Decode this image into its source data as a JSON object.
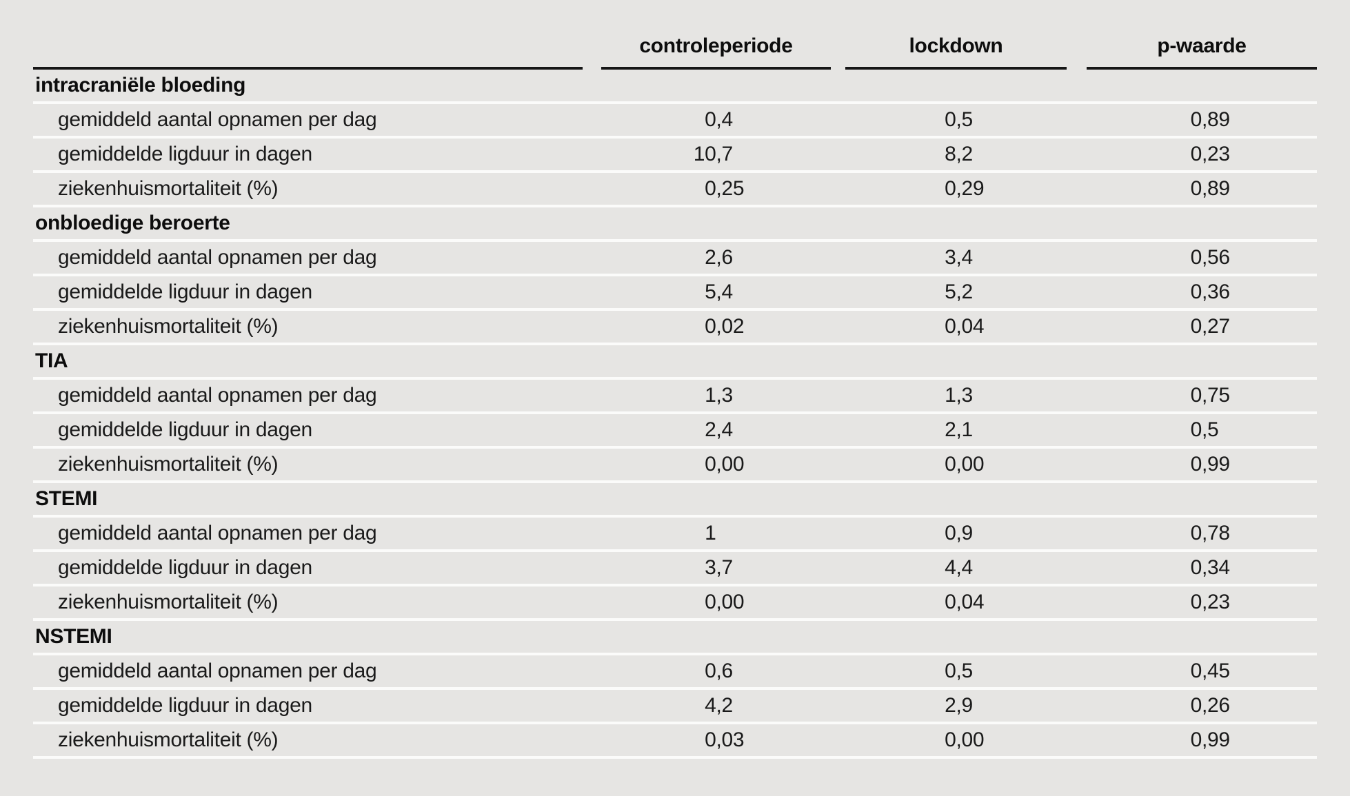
{
  "colors": {
    "background": "#e6e5e3",
    "row_separator": "#fbfbfa",
    "header_rule": "#161616",
    "text": "#1a1a1a"
  },
  "table": {
    "columns": [
      {
        "label": "controleperiode"
      },
      {
        "label": "lockdown"
      },
      {
        "label": "p-waarde"
      }
    ],
    "groups": [
      {
        "name": "intracraniële bloeding",
        "rows": [
          {
            "label": "gemiddeld aantal opnamen per dag",
            "values": [
              "0,4",
              "0,5",
              "0,89"
            ]
          },
          {
            "label": "gemiddelde ligduur in dagen",
            "values": [
              "10,7",
              "8,2",
              "0,23"
            ]
          },
          {
            "label": "ziekenhuismortaliteit (%)",
            "values": [
              "0,25",
              "0,29",
              "0,89"
            ]
          }
        ]
      },
      {
        "name": "onbloedige beroerte",
        "rows": [
          {
            "label": "gemiddeld aantal opnamen per dag",
            "values": [
              "2,6",
              "3,4",
              "0,56"
            ]
          },
          {
            "label": "gemiddelde ligduur in dagen",
            "values": [
              "5,4",
              "5,2",
              "0,36"
            ]
          },
          {
            "label": "ziekenhuismortaliteit (%)",
            "values": [
              "0,02",
              "0,04",
              "0,27"
            ]
          }
        ]
      },
      {
        "name": "TIA",
        "rows": [
          {
            "label": "gemiddeld aantal opnamen per dag",
            "values": [
              "1,3",
              "1,3",
              "0,75"
            ]
          },
          {
            "label": "gemiddelde ligduur in dagen",
            "values": [
              "2,4",
              "2,1",
              "0,5"
            ]
          },
          {
            "label": "ziekenhuismortaliteit (%)",
            "values": [
              "0,00",
              "0,00",
              "0,99"
            ]
          }
        ]
      },
      {
        "name": "STEMI",
        "rows": [
          {
            "label": "gemiddeld aantal opnamen per dag",
            "values": [
              "1",
              "0,9",
              "0,78"
            ]
          },
          {
            "label": "gemiddelde ligduur in dagen",
            "values": [
              "3,7",
              "4,4",
              "0,34"
            ]
          },
          {
            "label": "ziekenhuismortaliteit (%)",
            "values": [
              "0,00",
              "0,04",
              "0,23"
            ]
          }
        ]
      },
      {
        "name": "NSTEMI",
        "rows": [
          {
            "label": "gemiddeld aantal opnamen per dag",
            "values": [
              "0,6",
              "0,5",
              "0,45"
            ]
          },
          {
            "label": "gemiddelde ligduur in dagen",
            "values": [
              "4,2",
              "2,9",
              "0,26"
            ]
          },
          {
            "label": "ziekenhuismortaliteit (%)",
            "values": [
              "0,03",
              "0,00",
              "0,99"
            ]
          }
        ]
      }
    ]
  }
}
